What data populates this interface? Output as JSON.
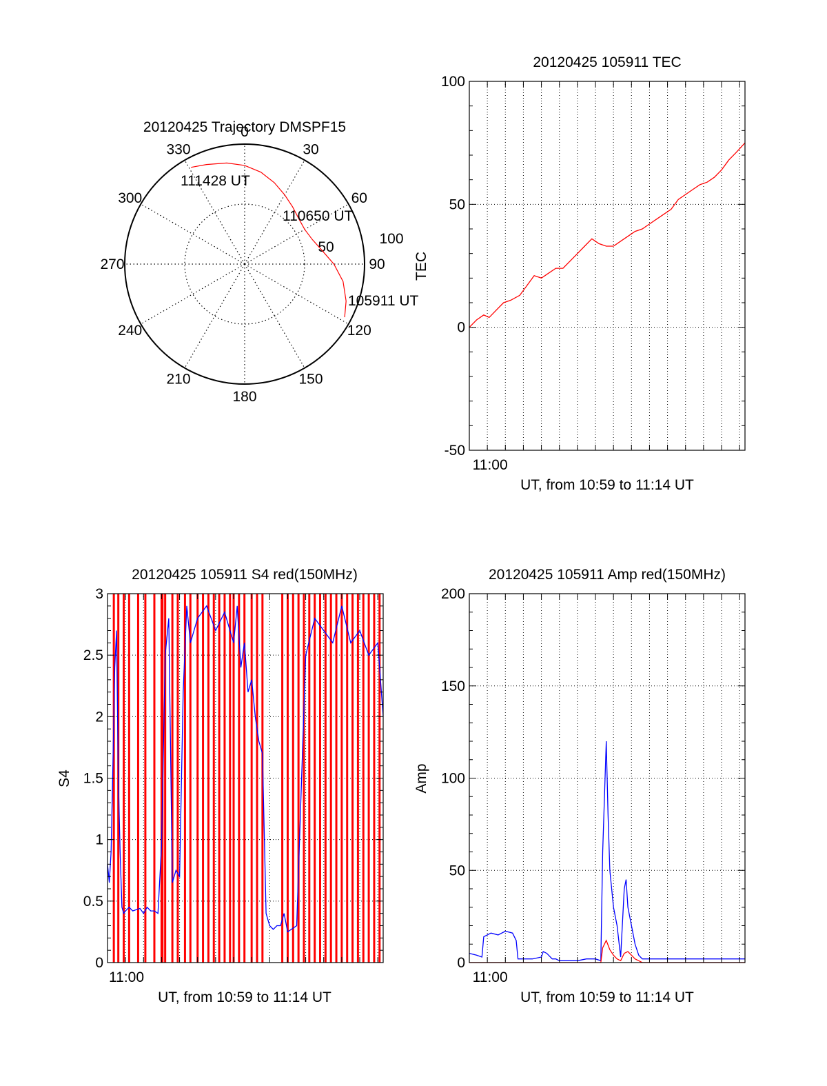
{
  "colors": {
    "red": "#ff0000",
    "blue": "#0000ff",
    "axis": "#000000",
    "grid": "#000000"
  },
  "chart_data": [
    {
      "type": "polar",
      "title": "20120425 Trajectory DMSPF15",
      "azimuth_labels": [
        "0",
        "30",
        "60",
        "90",
        "120",
        "150",
        "180",
        "210",
        "240",
        "270",
        "300",
        "330"
      ],
      "radial_labels": [
        "50",
        "100"
      ],
      "grid": true,
      "trajectory": {
        "color": "red",
        "points": [
          {
            "az": 118,
            "el": 5
          },
          {
            "az": 110,
            "el": 9
          },
          {
            "az": 100,
            "el": 15
          },
          {
            "az": 90,
            "el": 23
          },
          {
            "az": 80,
            "el": 31
          },
          {
            "az": 70,
            "el": 36
          },
          {
            "az": 60,
            "el": 38
          },
          {
            "az": 50,
            "el": 37
          },
          {
            "az": 40,
            "el": 34
          },
          {
            "az": 30,
            "el": 30
          },
          {
            "az": 20,
            "el": 25
          },
          {
            "az": 10,
            "el": 20
          },
          {
            "az": 0,
            "el": 16
          },
          {
            "az": 350,
            "el": 13
          },
          {
            "az": 339,
            "el": 10
          },
          {
            "az": 331,
            "el": 7
          }
        ]
      },
      "annotations": [
        {
          "text": "105911 UT",
          "az": 118,
          "el": 5
        },
        {
          "text": "110650 UT",
          "az": 57,
          "el": 38
        },
        {
          "text": "111428 UT",
          "az": 331,
          "el": 7
        }
      ]
    },
    {
      "type": "line",
      "title": "20120425 105911 TEC",
      "xlabel": "UT, from 10:59 to 11:14 UT",
      "ylabel": "TEC",
      "xlim": [
        0,
        15.3
      ],
      "x_ticks": [
        {
          "x": 1,
          "label": "11:00"
        }
      ],
      "ylim": [
        -50,
        100
      ],
      "y_ticks": [
        -50,
        0,
        50,
        100
      ],
      "grid": true,
      "series": [
        {
          "color": "red",
          "x": [
            0,
            0.4,
            0.8,
            1.1,
            1.5,
            1.9,
            2.3,
            2.8,
            3.2,
            3.6,
            4.0,
            4.4,
            4.8,
            5.2,
            5.6,
            6.0,
            6.4,
            6.8,
            7.2,
            7.6,
            8.0,
            8.4,
            8.8,
            9.2,
            9.6,
            10.0,
            10.4,
            10.8,
            11.2,
            11.6,
            12.0,
            12.4,
            12.8,
            13.2,
            13.6,
            14.0,
            14.4,
            14.8,
            15.3
          ],
          "y": [
            0,
            3,
            5,
            4,
            7,
            10,
            11,
            13,
            17,
            21,
            20,
            22,
            24,
            24,
            27,
            30,
            33,
            36,
            34,
            33,
            33,
            35,
            37,
            39,
            40,
            42,
            44,
            46,
            48,
            52,
            54,
            56,
            58,
            59,
            61,
            64,
            68,
            71,
            75
          ]
        }
      ]
    },
    {
      "type": "line",
      "title": "20120425 105911 S4 red(150MHz)",
      "xlabel": "UT, from 10:59 to 11:14 UT",
      "ylabel": "S4",
      "xlim": [
        0,
        15.3
      ],
      "x_ticks": [
        {
          "x": 0.9,
          "label": "11:00"
        }
      ],
      "ylim": [
        0,
        3
      ],
      "y_ticks": [
        0,
        0.5,
        1,
        1.5,
        2,
        2.5,
        3
      ],
      "grid": true,
      "red_spikes_x": [
        0.35,
        0.6,
        0.9,
        1.2,
        1.7,
        2.1,
        2.6,
        3.0,
        3.05,
        3.2,
        3.6,
        3.9,
        4.3,
        4.6,
        5.0,
        5.3,
        5.6,
        5.9,
        6.2,
        6.5,
        6.8,
        7.0,
        7.3,
        7.6,
        8.0,
        8.3,
        8.6,
        9.7,
        10.0,
        10.3,
        10.6,
        10.9,
        11.2,
        11.5,
        11.8,
        12.1,
        12.4,
        12.7,
        13.0,
        13.3,
        13.6,
        13.9,
        14.2,
        14.5,
        14.8,
        15.1
      ],
      "series": [
        {
          "color": "blue",
          "x": [
            0,
            0.1,
            0.2,
            0.3,
            0.4,
            0.5,
            0.6,
            0.7,
            0.8,
            0.9,
            1.0,
            1.2,
            1.4,
            1.6,
            1.8,
            2.0,
            2.2,
            2.4,
            2.6,
            2.8,
            3.0,
            3.1,
            3.2,
            3.4,
            3.6,
            3.8,
            4.0,
            4.2,
            4.4,
            4.6,
            4.8,
            5.0,
            5.5,
            6.0,
            6.5,
            7.0,
            7.2,
            7.4,
            7.6,
            7.8,
            8.0,
            8.2,
            8.4,
            8.6,
            8.8,
            9.0,
            9.2,
            9.4,
            9.6,
            9.8,
            10.0,
            10.5,
            11.0,
            11.5,
            12.0,
            12.5,
            13.0,
            13.5,
            14.0,
            14.5,
            15.0,
            15.3
          ],
          "y": [
            0.8,
            0.65,
            0.9,
            1.6,
            2.4,
            2.7,
            1.5,
            0.9,
            0.45,
            0.4,
            0.42,
            0.45,
            0.42,
            0.43,
            0.44,
            0.4,
            0.45,
            0.42,
            0.42,
            0.4,
            0.95,
            1.7,
            2.5,
            2.8,
            0.65,
            0.75,
            0.7,
            2.2,
            2.9,
            2.6,
            2.7,
            2.8,
            2.9,
            2.7,
            2.85,
            2.6,
            2.9,
            2.4,
            2.6,
            2.2,
            2.3,
            2.0,
            1.8,
            1.7,
            0.4,
            0.3,
            0.27,
            0.3,
            0.3,
            0.4,
            0.25,
            0.3,
            2.5,
            2.8,
            2.7,
            2.6,
            2.9,
            2.6,
            2.7,
            2.5,
            2.6,
            2.0
          ]
        }
      ]
    },
    {
      "type": "line",
      "title": "20120425 105911 Amp red(150MHz)",
      "xlabel": "UT, from 10:59 to 11:14 UT",
      "ylabel": "Amp",
      "xlim": [
        0,
        15.3
      ],
      "x_ticks": [
        {
          "x": 1,
          "label": "11:00"
        }
      ],
      "ylim": [
        0,
        200
      ],
      "y_ticks": [
        0,
        50,
        100,
        150,
        200
      ],
      "grid": true,
      "series": [
        {
          "color": "blue",
          "x": [
            0,
            0.4,
            0.7,
            0.8,
            1.2,
            1.6,
            2.0,
            2.4,
            2.6,
            2.7,
            3.0,
            3.5,
            4.0,
            4.1,
            4.3,
            4.6,
            4.8,
            5.0,
            5.5,
            6.0,
            6.5,
            7.0,
            7.3,
            7.4,
            7.6,
            7.7,
            7.8,
            8.0,
            8.2,
            8.4,
            8.6,
            8.7,
            8.8,
            9.0,
            9.2,
            9.4,
            9.6,
            9.8,
            10.0,
            11.0,
            12.0,
            13.0,
            14.0,
            15.3
          ],
          "y": [
            5,
            4,
            3,
            14,
            16,
            15,
            17,
            16,
            12,
            2,
            2,
            2,
            3,
            6,
            5,
            2,
            2,
            1,
            1,
            1,
            2,
            2,
            1,
            60,
            120,
            80,
            50,
            30,
            20,
            3,
            40,
            45,
            30,
            20,
            10,
            4,
            2,
            2,
            2,
            2,
            2,
            2,
            2,
            2
          ]
        },
        {
          "color": "red",
          "x": [
            0,
            7.3,
            7.4,
            7.6,
            7.8,
            8.0,
            8.2,
            8.4,
            8.6,
            8.8,
            9.0,
            9.2,
            9.4,
            9.6,
            10.0,
            15.3
          ],
          "y": [
            0,
            0,
            8,
            12,
            7,
            4,
            2,
            1,
            5,
            6,
            4,
            2,
            1,
            0,
            0,
            0
          ]
        }
      ]
    }
  ]
}
